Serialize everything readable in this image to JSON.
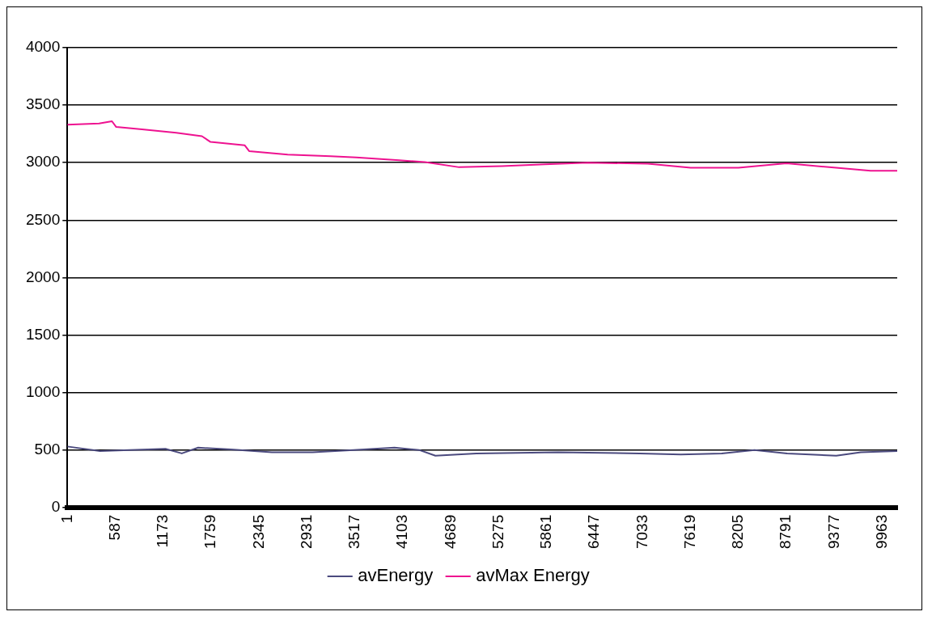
{
  "chart_data": {
    "type": "line",
    "x": [
      1,
      389,
      546,
      598,
      913,
      1332,
      1646,
      1751,
      2170,
      2223,
      2694,
      3218,
      3533,
      4057,
      4371,
      4790,
      5314,
      5838,
      6362,
      7096,
      7619,
      8205,
      8791,
      9400,
      9820,
      10145
    ],
    "series": [
      {
        "name": "avEnergy",
        "color": "#4b4a7e",
        "x": [
          1,
          400,
          1200,
          1400,
          1600,
          2000,
          2500,
          3000,
          3500,
          4000,
          4300,
          4500,
          5000,
          6000,
          7000,
          7500,
          8000,
          8400,
          8800,
          9400,
          9700,
          10145
        ],
        "values": [
          530,
          490,
          510,
          470,
          520,
          505,
          480,
          480,
          500,
          520,
          500,
          450,
          470,
          480,
          470,
          460,
          470,
          500,
          470,
          450,
          480,
          490
        ]
      },
      {
        "name": "avMax Energy",
        "color": "#ee1290",
        "values": [
          3330,
          3340,
          3360,
          3310,
          3290,
          3260,
          3230,
          3180,
          3150,
          3100,
          3070,
          3055,
          3045,
          3020,
          3005,
          2960,
          2970,
          2985,
          3000,
          2990,
          2955,
          2955,
          2995,
          2955,
          2930,
          2930
        ]
      }
    ],
    "xlim": [
      1,
      10145
    ],
    "xticks": [
      1,
      587,
      1173,
      1759,
      2345,
      2931,
      3517,
      4103,
      4689,
      5275,
      5861,
      6447,
      7033,
      7619,
      8205,
      8791,
      9377,
      9963
    ],
    "ylim": [
      0,
      4000
    ],
    "yticks": [
      0,
      500,
      1000,
      1500,
      2000,
      2500,
      3000,
      3500,
      4000
    ],
    "grid": "y",
    "legend": "bottom",
    "marker": "none",
    "line_style": "solid"
  }
}
